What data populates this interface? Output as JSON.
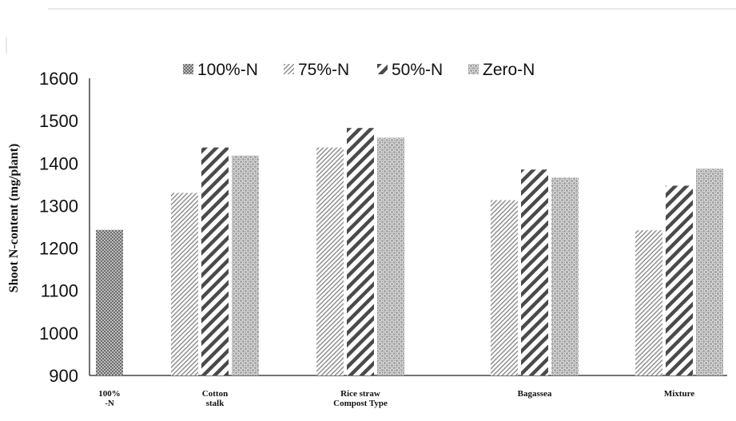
{
  "chart_data": {
    "type": "bar",
    "ylabel": "Shoot N-content (mg/plant)",
    "ylim": [
      900,
      1600
    ],
    "yticks": [
      "1600",
      "1500",
      "1400",
      "1300",
      "1200",
      "1100",
      "1000",
      "900"
    ],
    "tick_values": [
      1600,
      1500,
      1400,
      1300,
      1200,
      1100,
      1000,
      900
    ],
    "categories": [
      "100%\n-N",
      "Cotton\nstalk",
      "Rice straw\nCompost Type",
      "Bagassea",
      "Mixture"
    ],
    "legend_position": "top",
    "grid": false,
    "series": [
      {
        "name": "100%-N",
        "color": "#8a8a8a",
        "pattern": "dots",
        "values": [
          1243,
          null,
          null,
          null,
          null
        ]
      },
      {
        "name": "75%-N",
        "color": "#9a9a9a",
        "pattern": "thin-diagonal",
        "values": [
          null,
          1330,
          1437,
          1313,
          1242
        ]
      },
      {
        "name": "50%-N",
        "color": "#555555",
        "pattern": "wide-diagonal",
        "values": [
          null,
          1437,
          1483,
          1385,
          1347
        ]
      },
      {
        "name": "Zero-N",
        "color": "#777777",
        "pattern": "checker",
        "values": [
          null,
          1418,
          1460,
          1366,
          1387
        ]
      }
    ]
  }
}
